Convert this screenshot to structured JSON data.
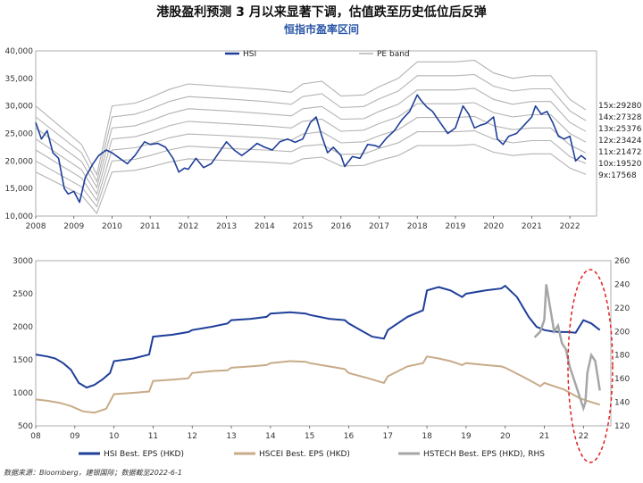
{
  "header": {
    "title": "港股盈利预测 3 月以来显著下调，估值跌至历史低位后反弹",
    "subtitle": "恒指市盈率区间"
  },
  "source": "数据来源：Bloomberg，建银国际；数据截至2022-6-1",
  "colors": {
    "hsi": "#1f3f99",
    "pe_band": "#b3b3b3",
    "hscei": "#c8ab88",
    "hstech": "#a6a6a6",
    "highlight": "#e02020"
  },
  "chart_data": [
    {
      "type": "line",
      "title": "恒指市盈率区间",
      "xlim": [
        2008,
        2022.7
      ],
      "ylim": [
        10000,
        40000
      ],
      "x_ticks": [
        "2008",
        "2009",
        "2010",
        "2011",
        "2012",
        "2013",
        "2014",
        "2015",
        "2016",
        "2017",
        "2018",
        "2019",
        "2020",
        "2021",
        "2022"
      ],
      "y_ticks": [
        "10,000",
        "15,000",
        "20,000",
        "25,000",
        "30,000",
        "35,000",
        "40,000"
      ],
      "legend": [
        "HSI",
        "PE band"
      ],
      "legend_position": "top-center",
      "series": [
        {
          "name": "HSI",
          "x": [
            2008.0,
            2008.15,
            2008.3,
            2008.45,
            2008.6,
            2008.75,
            2008.85,
            2009.0,
            2009.15,
            2009.3,
            2009.5,
            2009.65,
            2009.85,
            2010.0,
            2010.2,
            2010.4,
            2010.6,
            2010.85,
            2011.0,
            2011.2,
            2011.4,
            2011.6,
            2011.75,
            2011.9,
            2012.0,
            2012.2,
            2012.4,
            2012.6,
            2012.8,
            2013.0,
            2013.2,
            2013.4,
            2013.6,
            2013.8,
            2014.0,
            2014.2,
            2014.4,
            2014.6,
            2014.8,
            2015.0,
            2015.2,
            2015.35,
            2015.5,
            2015.65,
            2015.8,
            2016.0,
            2016.1,
            2016.3,
            2016.5,
            2016.7,
            2016.9,
            2017.0,
            2017.2,
            2017.4,
            2017.6,
            2017.8,
            2018.0,
            2018.1,
            2018.25,
            2018.4,
            2018.6,
            2018.8,
            2019.0,
            2019.2,
            2019.35,
            2019.5,
            2019.65,
            2019.8,
            2020.0,
            2020.1,
            2020.25,
            2020.4,
            2020.6,
            2020.8,
            2021.0,
            2021.1,
            2021.25,
            2021.4,
            2021.55,
            2021.7,
            2021.85,
            2022.0,
            2022.15,
            2022.3,
            2022.42
          ],
          "y": [
            27000,
            24000,
            25500,
            21500,
            20500,
            15000,
            14000,
            14500,
            12500,
            17000,
            19500,
            21000,
            22000,
            21500,
            20500,
            19500,
            21000,
            23500,
            23000,
            23200,
            22500,
            20500,
            18000,
            18700,
            18500,
            20500,
            18800,
            19500,
            21500,
            23500,
            22000,
            21000,
            22000,
            23200,
            22500,
            22000,
            23500,
            24000,
            23400,
            24000,
            27000,
            28000,
            24500,
            21500,
            22500,
            21000,
            19000,
            20800,
            20500,
            23000,
            22800,
            22500,
            24200,
            25500,
            27500,
            29000,
            32000,
            31000,
            29800,
            29000,
            27000,
            25000,
            26000,
            30000,
            28500,
            26000,
            26500,
            26800,
            28000,
            24000,
            23000,
            24500,
            25000,
            26500,
            28000,
            30000,
            28500,
            29000,
            27000,
            24500,
            24000,
            24500,
            20000,
            21000,
            20300
          ]
        },
        {
          "name": "15x:29280",
          "x": [
            2008,
            2009.2,
            2009.6,
            2010,
            2010.6,
            2011,
            2011.5,
            2012,
            2013,
            2014,
            2014.7,
            2015,
            2015.5,
            2016,
            2016.6,
            2017,
            2017.5,
            2018,
            2018.5,
            2019,
            2019.5,
            2020,
            2020.5,
            2021,
            2021.5,
            2022,
            2022.42
          ],
          "y": [
            30000,
            23000,
            17500,
            30000,
            30500,
            31500,
            33000,
            34000,
            33500,
            33000,
            32500,
            34000,
            34500,
            31800,
            32000,
            33500,
            35000,
            38000,
            38000,
            38000,
            38300,
            36000,
            35000,
            35500,
            35500,
            31200,
            29280
          ]
        },
        {
          "name": "14x:27328",
          "x": [
            2008,
            2009.2,
            2009.6,
            2010,
            2010.6,
            2011,
            2011.5,
            2012,
            2013,
            2014,
            2014.7,
            2015,
            2015.5,
            2016,
            2016.6,
            2017,
            2017.5,
            2018,
            2018.5,
            2019,
            2019.5,
            2020,
            2020.5,
            2021,
            2021.5,
            2022,
            2022.42
          ],
          "y": [
            28000,
            21500,
            16300,
            28000,
            28500,
            29400,
            30800,
            31700,
            31300,
            30800,
            30300,
            31700,
            32200,
            29700,
            29900,
            31300,
            32700,
            35500,
            35500,
            35500,
            35700,
            33600,
            32700,
            33100,
            33100,
            29100,
            27328
          ]
        },
        {
          "name": "13x:25376",
          "x": [
            2008,
            2009.2,
            2009.6,
            2010,
            2010.6,
            2011,
            2011.5,
            2012,
            2013,
            2014,
            2014.7,
            2015,
            2015.5,
            2016,
            2016.6,
            2017,
            2017.5,
            2018,
            2018.5,
            2019,
            2019.5,
            2020,
            2020.5,
            2021,
            2021.5,
            2022,
            2022.42
          ],
          "y": [
            26000,
            19900,
            15200,
            26000,
            26400,
            27300,
            28600,
            29500,
            29100,
            28600,
            28200,
            29500,
            29900,
            27600,
            27700,
            29000,
            30300,
            32900,
            32900,
            32900,
            33200,
            31200,
            30300,
            30800,
            30800,
            27000,
            25376
          ]
        },
        {
          "name": "12x:23424",
          "x": [
            2008,
            2009.2,
            2009.6,
            2010,
            2010.6,
            2011,
            2011.5,
            2012,
            2013,
            2014,
            2014.7,
            2015,
            2015.5,
            2016,
            2016.6,
            2017,
            2017.5,
            2018,
            2018.5,
            2019,
            2019.5,
            2020,
            2020.5,
            2021,
            2021.5,
            2022,
            2022.42
          ],
          "y": [
            24000,
            18400,
            14000,
            24000,
            24400,
            25200,
            26400,
            27200,
            26800,
            26400,
            26000,
            27200,
            27600,
            25400,
            25600,
            26800,
            28000,
            30400,
            30400,
            30400,
            30600,
            28800,
            28000,
            28400,
            28400,
            25000,
            23424
          ]
        },
        {
          "name": "11x:21472",
          "x": [
            2008,
            2009.2,
            2009.6,
            2010,
            2010.6,
            2011,
            2011.5,
            2012,
            2013,
            2014,
            2014.7,
            2015,
            2015.5,
            2016,
            2016.6,
            2017,
            2017.5,
            2018,
            2018.5,
            2019,
            2019.5,
            2020,
            2020.5,
            2021,
            2021.5,
            2022,
            2022.42
          ],
          "y": [
            22000,
            16900,
            12800,
            22000,
            22400,
            23100,
            24200,
            24900,
            24600,
            24200,
            23800,
            24900,
            25300,
            23300,
            23500,
            24600,
            25700,
            27900,
            27900,
            27900,
            28100,
            26400,
            25700,
            26000,
            26000,
            22900,
            21472
          ]
        },
        {
          "name": "10x:19520",
          "x": [
            2008,
            2009.2,
            2009.6,
            2010,
            2010.6,
            2011,
            2011.5,
            2012,
            2013,
            2014,
            2014.7,
            2015,
            2015.5,
            2016,
            2016.6,
            2017,
            2017.5,
            2018,
            2018.5,
            2019,
            2019.5,
            2020,
            2020.5,
            2021,
            2021.5,
            2022,
            2022.42
          ],
          "y": [
            20000,
            15300,
            11700,
            20000,
            20300,
            21000,
            22000,
            22700,
            22300,
            22000,
            21700,
            22700,
            23000,
            21200,
            21300,
            22300,
            23300,
            25300,
            25300,
            25300,
            25500,
            24000,
            23300,
            23700,
            23700,
            20800,
            19520
          ]
        },
        {
          "name": "9x:17568",
          "x": [
            2008,
            2009.2,
            2009.6,
            2010,
            2010.6,
            2011,
            2011.5,
            2012,
            2013,
            2014,
            2014.7,
            2015,
            2015.5,
            2016,
            2016.6,
            2017,
            2017.5,
            2018,
            2018.5,
            2019,
            2019.5,
            2020,
            2020.5,
            2021,
            2021.5,
            2022,
            2022.42
          ],
          "y": [
            18000,
            13800,
            10500,
            18000,
            18300,
            18900,
            19800,
            20400,
            20100,
            19800,
            19500,
            20400,
            20700,
            19100,
            19200,
            20100,
            21000,
            22800,
            22800,
            22800,
            23000,
            21600,
            21000,
            21300,
            21300,
            18700,
            17568
          ]
        }
      ]
    },
    {
      "type": "line",
      "xlim": [
        2008,
        2022.7
      ],
      "ylim": [
        500,
        3000
      ],
      "y2lim": [
        120,
        260
      ],
      "x_ticks": [
        "08",
        "09",
        "10",
        "11",
        "12",
        "13",
        "14",
        "15",
        "16",
        "17",
        "18",
        "19",
        "20",
        "21",
        "22"
      ],
      "y_ticks": [
        "500",
        "1000",
        "1500",
        "2000",
        "2500",
        "3000"
      ],
      "y2_ticks": [
        "120",
        "140",
        "160",
        "180",
        "200",
        "220",
        "240",
        "260"
      ],
      "legend": [
        "HSI Best. EPS (HKD)",
        "HSCEI Best. EPS (HKD)",
        "HSTECH Best. EPS (HKD), RHS"
      ],
      "legend_position": "bottom",
      "series": [
        {
          "name": "HSI Best. EPS (HKD)",
          "axis": "left",
          "x": [
            2008.0,
            2008.3,
            2008.5,
            2008.7,
            2008.9,
            2009.1,
            2009.3,
            2009.5,
            2009.7,
            2009.9,
            2010.0,
            2010.5,
            2010.9,
            2011.0,
            2011.5,
            2011.9,
            2012.0,
            2012.5,
            2012.9,
            2013.0,
            2013.5,
            2013.9,
            2014.0,
            2014.5,
            2014.9,
            2015.0,
            2015.5,
            2015.9,
            2016.0,
            2016.3,
            2016.6,
            2016.9,
            2017.0,
            2017.5,
            2017.9,
            2018.0,
            2018.3,
            2018.6,
            2018.9,
            2019.0,
            2019.5,
            2019.9,
            2020.0,
            2020.3,
            2020.6,
            2020.8,
            2021.0,
            2021.2,
            2021.4,
            2021.6,
            2021.8,
            2022.0,
            2022.2,
            2022.42
          ],
          "y": [
            1580,
            1550,
            1520,
            1450,
            1350,
            1150,
            1080,
            1120,
            1200,
            1300,
            1480,
            1520,
            1580,
            1850,
            1880,
            1920,
            1950,
            2000,
            2050,
            2100,
            2120,
            2150,
            2200,
            2220,
            2200,
            2180,
            2120,
            2100,
            2050,
            1950,
            1850,
            1820,
            1950,
            2150,
            2250,
            2550,
            2600,
            2550,
            2450,
            2500,
            2550,
            2580,
            2620,
            2450,
            2150,
            2000,
            1950,
            1930,
            1920,
            1920,
            1910,
            2100,
            2050,
            1950
          ]
        },
        {
          "name": "HSCEI Best. EPS (HKD)",
          "axis": "left",
          "x": [
            2008.0,
            2008.3,
            2008.6,
            2008.9,
            2009.2,
            2009.5,
            2009.8,
            2010.0,
            2010.5,
            2010.9,
            2011.0,
            2011.5,
            2011.9,
            2012.0,
            2012.5,
            2012.9,
            2013.0,
            2013.5,
            2013.9,
            2014.0,
            2014.5,
            2014.9,
            2015.0,
            2015.5,
            2015.9,
            2016.0,
            2016.5,
            2016.9,
            2017.0,
            2017.5,
            2017.9,
            2018.0,
            2018.3,
            2018.6,
            2018.9,
            2019.0,
            2019.5,
            2019.9,
            2020.0,
            2020.5,
            2020.9,
            2021.0,
            2021.5,
            2021.9,
            2022.0,
            2022.2,
            2022.42
          ],
          "y": [
            900,
            880,
            850,
            800,
            720,
            700,
            760,
            980,
            1000,
            1020,
            1180,
            1200,
            1220,
            1300,
            1330,
            1340,
            1380,
            1400,
            1420,
            1450,
            1480,
            1470,
            1450,
            1400,
            1360,
            1300,
            1220,
            1150,
            1250,
            1400,
            1450,
            1550,
            1520,
            1480,
            1420,
            1450,
            1420,
            1400,
            1380,
            1230,
            1100,
            1150,
            1050,
            920,
            900,
            860,
            820
          ]
        },
        {
          "name": "HSTECH Best. EPS (HKD), RHS",
          "axis": "right",
          "x": [
            2020.75,
            2020.9,
            2021.0,
            2021.05,
            2021.15,
            2021.25,
            2021.35,
            2021.45,
            2021.55,
            2021.65,
            2021.75,
            2021.85,
            2021.95,
            2022.0,
            2022.05,
            2022.1,
            2022.2,
            2022.3,
            2022.42
          ],
          "y": [
            195,
            200,
            210,
            240,
            220,
            200,
            205,
            190,
            185,
            170,
            160,
            150,
            140,
            135,
            140,
            165,
            180,
            175,
            150
          ]
        }
      ]
    }
  ]
}
